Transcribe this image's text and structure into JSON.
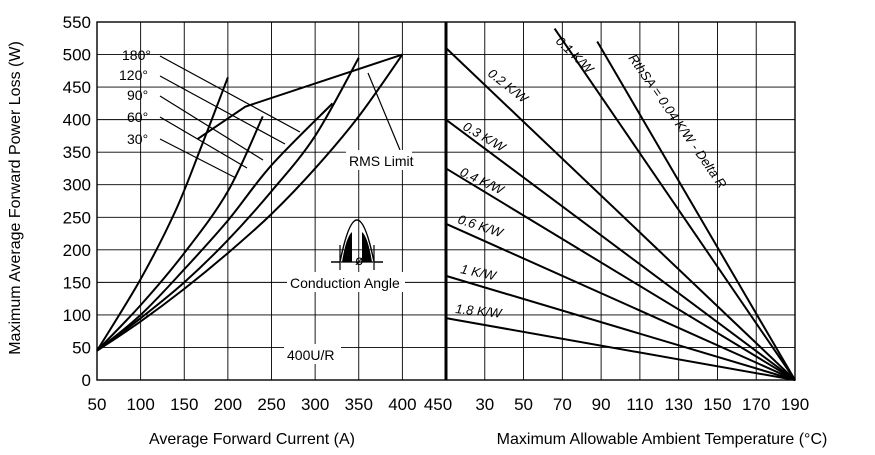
{
  "chart_data": [
    {
      "type": "line",
      "title": "",
      "ylabel": "Maximum Average Forward Power Loss (W)",
      "xlabel": "Average Forward Current (A)",
      "x_ticks": [
        50,
        100,
        150,
        200,
        250,
        300,
        350,
        400,
        450
      ],
      "y_ticks": [
        0,
        50,
        100,
        150,
        200,
        250,
        300,
        350,
        400,
        450,
        500,
        550
      ],
      "xlim": [
        50,
        450
      ],
      "ylim": [
        0,
        550
      ],
      "grid": true,
      "series": [
        {
          "name": "180°",
          "x": [
            50,
            100,
            150,
            200,
            250,
            300,
            350,
            400
          ],
          "y": [
            45,
            90,
            140,
            195,
            255,
            325,
            405,
            500
          ]
        },
        {
          "name": "120°",
          "x": [
            50,
            100,
            150,
            200,
            250,
            300,
            350
          ],
          "y": [
            45,
            95,
            150,
            215,
            290,
            375,
            495
          ]
        },
        {
          "name": "90°",
          "x": [
            50,
            100,
            150,
            200,
            250,
            320
          ],
          "y": [
            45,
            100,
            170,
            245,
            330,
            425
          ]
        },
        {
          "name": "60°",
          "x": [
            50,
            100,
            150,
            200,
            240
          ],
          "y": [
            45,
            115,
            195,
            290,
            405
          ]
        },
        {
          "name": "30°",
          "x": [
            50,
            100,
            140,
            170,
            200
          ],
          "y": [
            45,
            155,
            260,
            360,
            465
          ]
        },
        {
          "name": "RMS Limit",
          "x": [
            165,
            220,
            400
          ],
          "y": [
            370,
            420,
            500
          ]
        }
      ],
      "annotations": [
        "RMS Limit",
        "Conduction Angle",
        "ø",
        "400U/R"
      ]
    },
    {
      "type": "line",
      "title": "",
      "xlabel": "Maximum Allowable Ambient Temperature (°C)",
      "x_ticks": [
        30,
        50,
        70,
        90,
        110,
        130,
        150,
        170,
        190
      ],
      "xlim": [
        10,
        190
      ],
      "ylim": [
        0,
        550
      ],
      "grid": true,
      "series": [
        {
          "name": "0.1 K/W",
          "x": [
            66,
            190
          ],
          "y": [
            540,
            0
          ]
        },
        {
          "name": "RthSA = 0.04 K/W - Delta R",
          "x": [
            88,
            190
          ],
          "y": [
            520,
            0
          ]
        },
        {
          "name": "0.2 K/W",
          "x": [
            10,
            190
          ],
          "y": [
            510,
            0
          ]
        },
        {
          "name": "0.3 K/W",
          "x": [
            10,
            190
          ],
          "y": [
            400,
            0
          ]
        },
        {
          "name": "0.4 K/W",
          "x": [
            10,
            190
          ],
          "y": [
            325,
            0
          ]
        },
        {
          "name": "0.6 K/W",
          "x": [
            10,
            190
          ],
          "y": [
            240,
            0
          ]
        },
        {
          "name": "1 K/W",
          "x": [
            10,
            190
          ],
          "y": [
            160,
            0
          ]
        },
        {
          "name": "1.8 K/W",
          "x": [
            10,
            190
          ],
          "y": [
            95,
            0
          ]
        }
      ]
    }
  ],
  "labels": {
    "y_axis_title": "Maximum Average Forward Power Loss (W)",
    "x_axis_left_title": "Average Forward Current (A)",
    "x_axis_right_title": "Maximum Allowable Ambient Temperature (°C)",
    "left_x_ticks": [
      "50",
      "100",
      "150",
      "200",
      "250",
      "300",
      "350",
      "400",
      "450"
    ],
    "right_x_ticks": [
      "30",
      "50",
      "70",
      "90",
      "110",
      "130",
      "150",
      "170",
      "190"
    ],
    "y_ticks": [
      "0",
      "50",
      "100",
      "150",
      "200",
      "250",
      "300",
      "350",
      "400",
      "450",
      "500",
      "550"
    ],
    "angle_labels": [
      "180°",
      "120°",
      "90°",
      "60°",
      "30°"
    ],
    "rms_limit": "RMS Limit",
    "conduction_angle": "Conduction Angle",
    "phi": "ø",
    "part_number": "400U/R",
    "thermal_labels": [
      "0.1 K/W",
      "RthSA = 0.04 K/W - Delta R",
      "0.2 K/W",
      "0.3 K/W",
      "0.4 K/W",
      "0.6 K/W",
      "1 K/W",
      "1.8 K/W"
    ]
  }
}
